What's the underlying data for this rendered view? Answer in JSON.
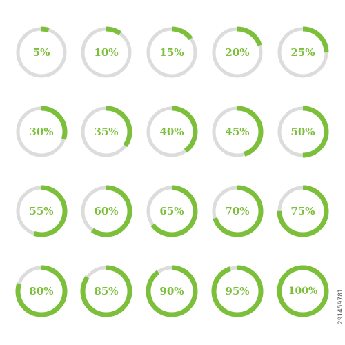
{
  "colors": {
    "progress": "#7cbf3a",
    "track": "#dcdcdc",
    "label": "#7cbf3a",
    "watermark": "#555555"
  },
  "rings": [
    {
      "label": "5%",
      "value": 5
    },
    {
      "label": "10%",
      "value": 10
    },
    {
      "label": "15%",
      "value": 15
    },
    {
      "label": "20%",
      "value": 20
    },
    {
      "label": "25%",
      "value": 25
    },
    {
      "label": "30%",
      "value": 30
    },
    {
      "label": "35%",
      "value": 35
    },
    {
      "label": "40%",
      "value": 40
    },
    {
      "label": "45%",
      "value": 45
    },
    {
      "label": "50%",
      "value": 50
    },
    {
      "label": "55%",
      "value": 55
    },
    {
      "label": "60%",
      "value": 60
    },
    {
      "label": "65%",
      "value": 65
    },
    {
      "label": "70%",
      "value": 70
    },
    {
      "label": "75%",
      "value": 75
    },
    {
      "label": "80%",
      "value": 80
    },
    {
      "label": "85%",
      "value": 85
    },
    {
      "label": "90%",
      "value": 90
    },
    {
      "label": "95%",
      "value": 95
    },
    {
      "label": "100%",
      "value": 100
    }
  ],
  "watermark": {
    "stock_id": "291459781"
  }
}
